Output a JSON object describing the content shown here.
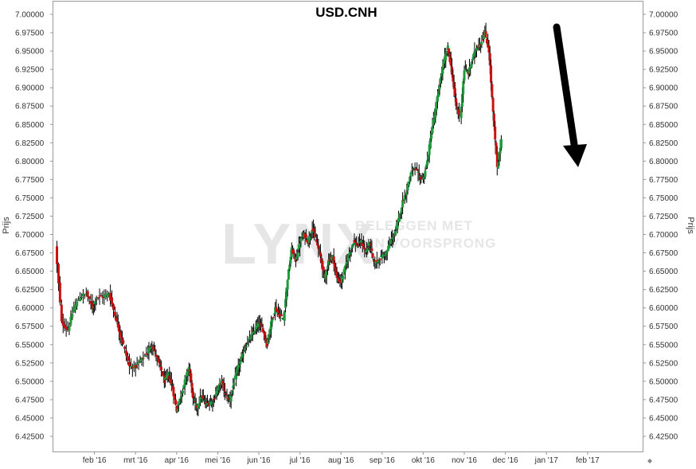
{
  "chart_data": {
    "type": "candlestick",
    "title": "USD.CNH",
    "ylabel": "Prijs",
    "ylim": [
      6.41,
      7.0
    ],
    "y_ticks": [
      "7.00000",
      "6.97500",
      "6.95000",
      "6.92500",
      "6.90000",
      "6.87500",
      "6.85000",
      "6.82500",
      "6.80000",
      "6.77500",
      "6.75000",
      "6.72500",
      "6.70000",
      "6.67500",
      "6.65000",
      "6.62500",
      "6.60000",
      "6.57500",
      "6.55000",
      "6.52500",
      "6.50000",
      "6.47500",
      "6.45000",
      "6.42500"
    ],
    "x_ticks": [
      "feb '16",
      "mrt '16",
      "apr '16",
      "mei '16",
      "jun '16",
      "jul '16",
      "aug '16",
      "sep '16",
      "okt '16",
      "nov '16",
      "dec '16",
      "jan '17",
      "feb '17"
    ],
    "x_tick_month_index": [
      1,
      2,
      3,
      4,
      5,
      6,
      7,
      8,
      9,
      10,
      11,
      12,
      13
    ],
    "x_range_months": [
      0.0,
      14.34
    ],
    "up_color": "#1e9c3c",
    "down_color": "#cc1111",
    "wick_color": "#000000",
    "watermark": {
      "logo": "LYNX",
      "line1": "BELEGGEN MET",
      "line2": "EEN VOORSPRONG"
    },
    "annotation": "arrow-down",
    "close_series": [
      {
        "t": 0.05,
        "v": 6.685
      },
      {
        "t": 0.2,
        "v": 6.58
      },
      {
        "t": 0.35,
        "v": 6.57
      },
      {
        "t": 0.5,
        "v": 6.6
      },
      {
        "t": 0.65,
        "v": 6.615
      },
      {
        "t": 0.8,
        "v": 6.62
      },
      {
        "t": 0.95,
        "v": 6.6
      },
      {
        "t": 1.05,
        "v": 6.615
      },
      {
        "t": 1.2,
        "v": 6.615
      },
      {
        "t": 1.35,
        "v": 6.62
      },
      {
        "t": 1.5,
        "v": 6.59
      },
      {
        "t": 1.6,
        "v": 6.57
      },
      {
        "t": 1.7,
        "v": 6.55
      },
      {
        "t": 1.85,
        "v": 6.52
      },
      {
        "t": 2.0,
        "v": 6.52
      },
      {
        "t": 2.15,
        "v": 6.53
      },
      {
        "t": 2.3,
        "v": 6.54
      },
      {
        "t": 2.4,
        "v": 6.55
      },
      {
        "t": 2.5,
        "v": 6.535
      },
      {
        "t": 2.6,
        "v": 6.52
      },
      {
        "t": 2.7,
        "v": 6.5
      },
      {
        "t": 2.8,
        "v": 6.51
      },
      {
        "t": 2.9,
        "v": 6.49
      },
      {
        "t": 3.0,
        "v": 6.46
      },
      {
        "t": 3.1,
        "v": 6.48
      },
      {
        "t": 3.2,
        "v": 6.5
      },
      {
        "t": 3.3,
        "v": 6.52
      },
      {
        "t": 3.4,
        "v": 6.475
      },
      {
        "t": 3.5,
        "v": 6.465
      },
      {
        "t": 3.6,
        "v": 6.48
      },
      {
        "t": 3.7,
        "v": 6.47
      },
      {
        "t": 3.8,
        "v": 6.47
      },
      {
        "t": 3.9,
        "v": 6.475
      },
      {
        "t": 4.0,
        "v": 6.49
      },
      {
        "t": 4.1,
        "v": 6.5
      },
      {
        "t": 4.2,
        "v": 6.48
      },
      {
        "t": 4.3,
        "v": 6.475
      },
      {
        "t": 4.4,
        "v": 6.5
      },
      {
        "t": 4.5,
        "v": 6.52
      },
      {
        "t": 4.6,
        "v": 6.535
      },
      {
        "t": 4.7,
        "v": 6.55
      },
      {
        "t": 4.8,
        "v": 6.56
      },
      {
        "t": 4.9,
        "v": 6.57
      },
      {
        "t": 5.0,
        "v": 6.58
      },
      {
        "t": 5.1,
        "v": 6.57
      },
      {
        "t": 5.2,
        "v": 6.55
      },
      {
        "t": 5.3,
        "v": 6.58
      },
      {
        "t": 5.4,
        "v": 6.6
      },
      {
        "t": 5.5,
        "v": 6.59
      },
      {
        "t": 5.6,
        "v": 6.585
      },
      {
        "t": 5.7,
        "v": 6.64
      },
      {
        "t": 5.8,
        "v": 6.68
      },
      {
        "t": 5.9,
        "v": 6.665
      },
      {
        "t": 6.0,
        "v": 6.69
      },
      {
        "t": 6.1,
        "v": 6.7
      },
      {
        "t": 6.2,
        "v": 6.69
      },
      {
        "t": 6.3,
        "v": 6.71
      },
      {
        "t": 6.4,
        "v": 6.69
      },
      {
        "t": 6.5,
        "v": 6.67
      },
      {
        "t": 6.6,
        "v": 6.64
      },
      {
        "t": 6.7,
        "v": 6.665
      },
      {
        "t": 6.8,
        "v": 6.67
      },
      {
        "t": 6.9,
        "v": 6.64
      },
      {
        "t": 7.0,
        "v": 6.635
      },
      {
        "t": 7.1,
        "v": 6.655
      },
      {
        "t": 7.2,
        "v": 6.675
      },
      {
        "t": 7.3,
        "v": 6.69
      },
      {
        "t": 7.4,
        "v": 6.685
      },
      {
        "t": 7.5,
        "v": 6.69
      },
      {
        "t": 7.6,
        "v": 6.675
      },
      {
        "t": 7.7,
        "v": 6.69
      },
      {
        "t": 7.8,
        "v": 6.66
      },
      {
        "t": 7.9,
        "v": 6.665
      },
      {
        "t": 8.0,
        "v": 6.67
      },
      {
        "t": 8.1,
        "v": 6.675
      },
      {
        "t": 8.2,
        "v": 6.69
      },
      {
        "t": 8.3,
        "v": 6.7
      },
      {
        "t": 8.4,
        "v": 6.72
      },
      {
        "t": 8.5,
        "v": 6.745
      },
      {
        "t": 8.6,
        "v": 6.76
      },
      {
        "t": 8.7,
        "v": 6.785
      },
      {
        "t": 8.8,
        "v": 6.79
      },
      {
        "t": 8.9,
        "v": 6.78
      },
      {
        "t": 9.0,
        "v": 6.775
      },
      {
        "t": 9.1,
        "v": 6.8
      },
      {
        "t": 9.2,
        "v": 6.84
      },
      {
        "t": 9.3,
        "v": 6.87
      },
      {
        "t": 9.4,
        "v": 6.905
      },
      {
        "t": 9.5,
        "v": 6.935
      },
      {
        "t": 9.6,
        "v": 6.955
      },
      {
        "t": 9.7,
        "v": 6.92
      },
      {
        "t": 9.8,
        "v": 6.875
      },
      {
        "t": 9.9,
        "v": 6.86
      },
      {
        "t": 10.0,
        "v": 6.925
      },
      {
        "t": 10.1,
        "v": 6.92
      },
      {
        "t": 10.2,
        "v": 6.94
      },
      {
        "t": 10.3,
        "v": 6.955
      },
      {
        "t": 10.4,
        "v": 6.96
      },
      {
        "t": 10.5,
        "v": 6.975
      },
      {
        "t": 10.6,
        "v": 6.95
      },
      {
        "t": 10.7,
        "v": 6.865
      },
      {
        "t": 10.8,
        "v": 6.79
      },
      {
        "t": 10.9,
        "v": 6.83
      }
    ]
  }
}
